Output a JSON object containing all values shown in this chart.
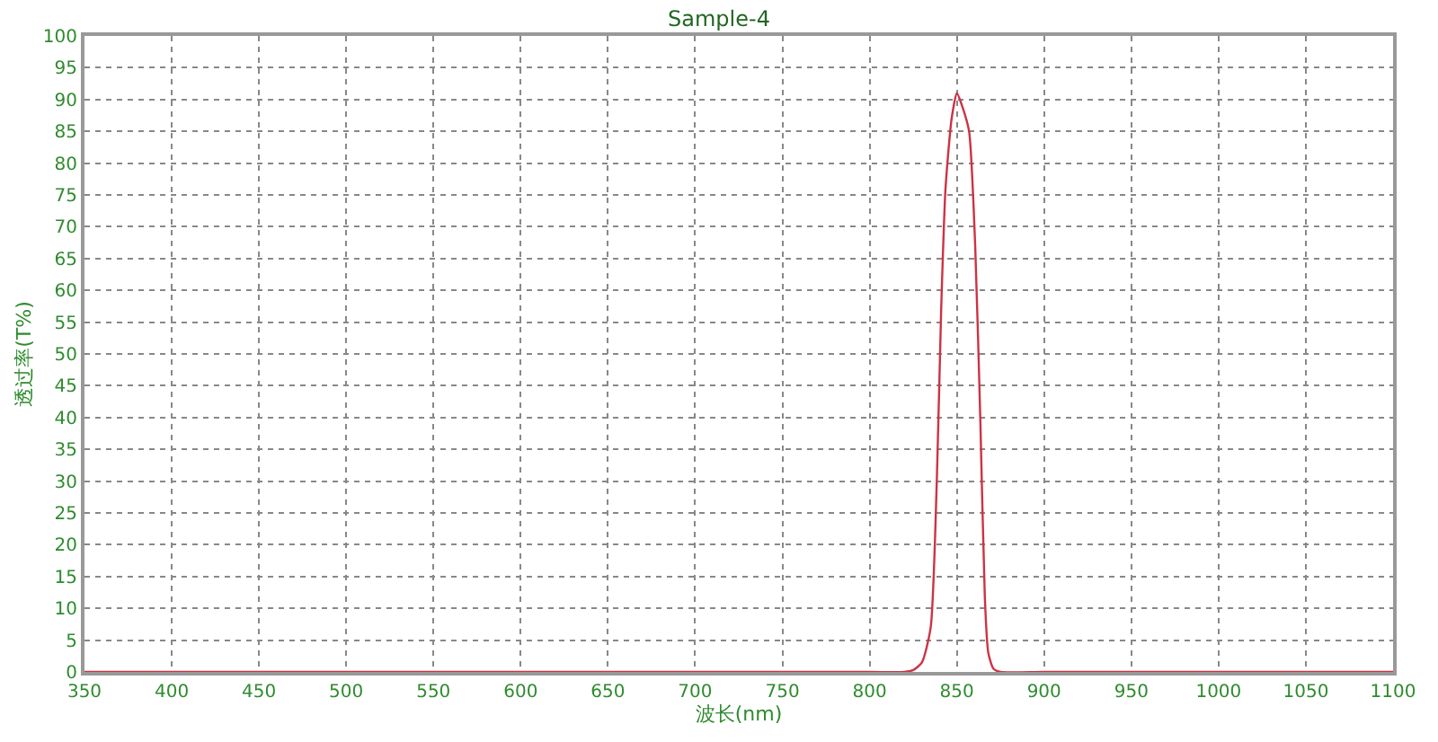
{
  "chart_data": {
    "type": "line",
    "title": "Sample-4",
    "xlabel": "波长(nm)",
    "ylabel": "透过率(T%)",
    "x": [
      350,
      500,
      700,
      800,
      820,
      825,
      830,
      835,
      838.5,
      841,
      843.5,
      847,
      850,
      853,
      857,
      860.5,
      863.5,
      866,
      868,
      871,
      875,
      900,
      1000,
      1100
    ],
    "series": [
      {
        "color": "#cc3344",
        "values": [
          0,
          0,
          0,
          0,
          0,
          0.3,
          1.5,
          7,
          30,
          57,
          76,
          87,
          91,
          89,
          85,
          67,
          39,
          12,
          3,
          0.5,
          0,
          0,
          0,
          0
        ]
      }
    ],
    "xlim": [
      350,
      1100
    ],
    "xticks": [
      350,
      400,
      450,
      500,
      550,
      600,
      650,
      700,
      750,
      800,
      850,
      900,
      950,
      1000,
      1050,
      1100
    ],
    "ylim": [
      0,
      100
    ],
    "yticks": [
      0,
      5,
      10,
      15,
      20,
      25,
      30,
      35,
      40,
      45,
      50,
      55,
      60,
      65,
      70,
      75,
      80,
      85,
      90,
      95,
      100
    ],
    "grid": true,
    "line_style": "solid",
    "marker": "none"
  }
}
